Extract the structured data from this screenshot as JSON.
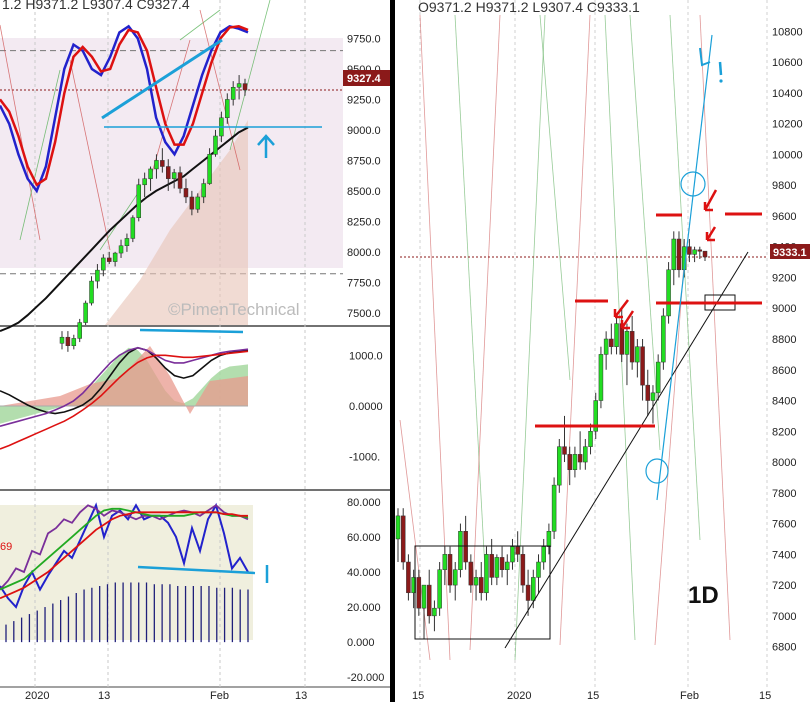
{
  "colors": {
    "bull": "#22dd22",
    "bear": "#8b1a1a",
    "blue": "#2222cc",
    "red": "#dd1111",
    "cyan": "#1ba0d8",
    "black": "#111111",
    "divider": "#000000",
    "price_tag": "#8b1a1a"
  },
  "chart_data": [
    {
      "type": "line",
      "name": "left-price-panel",
      "ohlc_text": "1.2   H9371.2   L9307.4   C9327.4",
      "last_price_label": "9327.4",
      "y_ticks": [
        "9750.0",
        "9500.0",
        "9250.0",
        "9000.0",
        "8750.0",
        "8500.0",
        "8250.0",
        "8000.0",
        "7750.0",
        "7500.0"
      ],
      "y_tick_values": [
        9750,
        9500,
        9250,
        9000,
        8750,
        8500,
        8250,
        8000,
        7750,
        7500
      ],
      "ylim": [
        7400,
        10000
      ],
      "watermark": "©PimenTechnical",
      "candles": [
        [
          7250,
          7350,
          7200,
          7300
        ],
        [
          7300,
          7350,
          7180,
          7230
        ],
        [
          7230,
          7320,
          7200,
          7290
        ],
        [
          7290,
          7450,
          7260,
          7420
        ],
        [
          7420,
          7600,
          7400,
          7580
        ],
        [
          7580,
          7800,
          7560,
          7760
        ],
        [
          7760,
          7900,
          7700,
          7850
        ],
        [
          7850,
          7980,
          7800,
          7950
        ],
        [
          7950,
          8000,
          7900,
          7920
        ],
        [
          7920,
          8000,
          7880,
          7990
        ],
        [
          7990,
          8100,
          7950,
          8050
        ],
        [
          8050,
          8150,
          8000,
          8110
        ],
        [
          8110,
          8300,
          8080,
          8280
        ],
        [
          8280,
          8600,
          8250,
          8550
        ],
        [
          8550,
          8650,
          8450,
          8600
        ],
        [
          8600,
          8700,
          8500,
          8680
        ],
        [
          8680,
          8800,
          8600,
          8750
        ],
        [
          8750,
          8850,
          8650,
          8700
        ],
        [
          8700,
          8760,
          8500,
          8600
        ],
        [
          8600,
          8680,
          8520,
          8650
        ],
        [
          8650,
          8700,
          8480,
          8520
        ],
        [
          8520,
          8600,
          8400,
          8450
        ],
        [
          8450,
          8500,
          8300,
          8350
        ],
        [
          8350,
          8480,
          8320,
          8450
        ],
        [
          8450,
          8600,
          8400,
          8560
        ],
        [
          8560,
          8850,
          8550,
          8800
        ],
        [
          8800,
          9000,
          8780,
          8950
        ],
        [
          8950,
          9150,
          8900,
          9100
        ],
        [
          9100,
          9300,
          9050,
          9250
        ],
        [
          9250,
          9400,
          9200,
          9350
        ],
        [
          9350,
          9450,
          9250,
          9380
        ],
        [
          9380,
          9420,
          9280,
          9327.4
        ]
      ],
      "series": [
        {
          "name": "blue-fast",
          "color": "#2222cc",
          "values": [
            9200,
            9050,
            8800,
            8600,
            8500,
            8700,
            9100,
            9500,
            9700,
            9650,
            9500,
            9450,
            9600,
            9800,
            9850,
            9750,
            9500,
            9100,
            8900,
            8800,
            8950,
            9200,
            9450,
            9650,
            9800,
            9850,
            9830,
            9800
          ]
        },
        {
          "name": "red-fast",
          "color": "#dd1111",
          "values": [
            9250,
            9150,
            8950,
            8700,
            8550,
            8600,
            8900,
            9300,
            9600,
            9680,
            9600,
            9480,
            9500,
            9700,
            9820,
            9800,
            9650,
            9350,
            9050,
            8880,
            8880,
            9050,
            9300,
            9550,
            9750,
            9840,
            9850,
            9820
          ]
        },
        {
          "name": "black-ma",
          "color": "#111111",
          "values": [
            7350,
            7380,
            7420,
            7480,
            7550,
            7620,
            7700,
            7780,
            7860,
            7940,
            8020,
            8100,
            8180,
            8250,
            8320,
            8390,
            8450,
            8500,
            8540,
            8580,
            8620,
            8680,
            8740,
            8800,
            8860,
            8920,
            8980,
            9020
          ]
        }
      ],
      "annotations": [
        "cyan-trendline",
        "cyan-horizontal-support",
        "cyan-up-arrow"
      ]
    },
    {
      "type": "area",
      "name": "left-momentum-panel",
      "y_ticks": [
        "1000.0",
        "0.0000",
        "-1000."
      ],
      "y_tick_values": [
        1000,
        0,
        -1000
      ],
      "ylim": [
        -1600,
        1500
      ],
      "histogram": [
        -350,
        -300,
        -250,
        -200,
        -150,
        -100,
        -50,
        0,
        100,
        250,
        400,
        600,
        800,
        1000,
        1150,
        1100,
        900,
        600,
        300,
        100,
        50,
        150,
        350,
        550,
        700,
        780,
        800,
        820
      ],
      "series": [
        {
          "name": "black-1",
          "color": "#111111",
          "values": [
            300,
            220,
            120,
            20,
            -60,
            -120,
            -150,
            -120,
            -60,
            20,
            150,
            350,
            600,
            850,
            1050,
            1150,
            1100,
            950,
            750,
            600,
            550,
            600,
            750,
            900,
            1000,
            1050,
            1080,
            1100
          ]
        },
        {
          "name": "purple-1",
          "color": "#7a2f9a",
          "values": [
            -400,
            -350,
            -300,
            -250,
            -200,
            -150,
            -80,
            0,
            100,
            250,
            450,
            650,
            850,
            1000,
            1100,
            1150,
            1100,
            1000,
            900,
            850,
            850,
            900,
            950,
            1000,
            1050,
            1080,
            1100,
            1120
          ]
        },
        {
          "name": "red-1",
          "color": "#dd1111",
          "values": [
            -850,
            -780,
            -700,
            -620,
            -540,
            -460,
            -380,
            -300,
            -200,
            -80,
            50,
            200,
            380,
            560,
            720,
            860,
            950,
            1000,
            1000,
            980,
            960,
            960,
            980,
            1000,
            1020,
            1040,
            1060,
            1080
          ]
        }
      ],
      "annotations": [
        "cyan-horizontal-line"
      ]
    },
    {
      "type": "line",
      "name": "left-oscillator-panel",
      "y_ticks": [
        "80.000",
        "60.000",
        "40.000",
        "20.000",
        "0.000",
        "-20.000"
      ],
      "y_tick_values": [
        80,
        60,
        40,
        20,
        0,
        -20
      ],
      "ylim": [
        -25,
        85
      ],
      "left_label": "69",
      "series": [
        {
          "name": "blue-osc",
          "color": "#2222cc",
          "values": [
            32,
            25,
            20,
            32,
            40,
            30,
            38,
            45,
            52,
            48,
            58,
            68,
            78,
            60,
            72,
            75,
            70,
            78,
            70,
            72,
            72,
            68,
            60,
            45,
            65,
            52,
            70,
            78,
            62,
            42,
            48,
            40
          ]
        },
        {
          "name": "purple-osc",
          "color": "#7a2f9a",
          "values": [
            30,
            35,
            42,
            40,
            52,
            50,
            62,
            65,
            70,
            68,
            74,
            78,
            76,
            72,
            75,
            74,
            72,
            70,
            72,
            72,
            70,
            72,
            74,
            75,
            74,
            72,
            75,
            78,
            74,
            72,
            72,
            70
          ]
        },
        {
          "name": "green-osc",
          "color": "#22aa22",
          "values": [
            30,
            32,
            34,
            36,
            40,
            44,
            48,
            52,
            56,
            60,
            64,
            68,
            72,
            75,
            76,
            76,
            75,
            74,
            73,
            72,
            72,
            72,
            72,
            72,
            73,
            74,
            74,
            74,
            73,
            72,
            72,
            71
          ]
        },
        {
          "name": "red-osc",
          "color": "#dd1111",
          "values": [
            25,
            27,
            29,
            31,
            34,
            37,
            40,
            44,
            48,
            52,
            56,
            60,
            64,
            67,
            70,
            72,
            73,
            74,
            74,
            74,
            74,
            74,
            74,
            74,
            74,
            74,
            74,
            74,
            73,
            73,
            72,
            72
          ]
        }
      ],
      "histogram": [
        10,
        12,
        14,
        16,
        18,
        20,
        22,
        24,
        26,
        28,
        30,
        31,
        32,
        33,
        34,
        34,
        34,
        34,
        34,
        33,
        33,
        33,
        32,
        32,
        32,
        32,
        32,
        31,
        31,
        31,
        30,
        30
      ],
      "annotations": [
        "cyan-horizontal-line",
        "cyan-mark"
      ]
    },
    {
      "type": "line",
      "name": "right-price-panel-1D",
      "ohlc_text": "O9371.2   H9371.2   L9307.4   C9333.1",
      "last_price_label": "9333.1",
      "timeframe_label": "1D",
      "y_ticks": [
        "10800",
        "10600",
        "10400",
        "10200",
        "10000",
        "9800",
        "9600",
        "9400",
        "9200",
        "9000",
        "8800",
        "8600",
        "8400",
        "8200",
        "8000",
        "7800",
        "7600",
        "7400",
        "7200",
        "7000",
        "6800"
      ],
      "y_tick_values": [
        10800,
        10600,
        10400,
        10200,
        10000,
        9800,
        9600,
        9400,
        9200,
        9000,
        8800,
        8600,
        8400,
        8200,
        8000,
        7800,
        7600,
        7400,
        7200,
        7000,
        6800
      ],
      "ylim": [
        6700,
        10900
      ],
      "x_ticks": [
        "15",
        "2020",
        "15",
        "Feb",
        "15"
      ],
      "candles": [
        [
          7500,
          7700,
          7350,
          7650
        ],
        [
          7650,
          7700,
          7300,
          7350
        ],
        [
          7350,
          7400,
          7100,
          7150
        ],
        [
          7150,
          7300,
          7050,
          7250
        ],
        [
          7250,
          7300,
          7000,
          7050
        ],
        [
          7050,
          7200,
          6850,
          7200
        ],
        [
          7200,
          7300,
          6950,
          7000
        ],
        [
          7000,
          7100,
          6900,
          7050
        ],
        [
          7050,
          7350,
          7000,
          7300
        ],
        [
          7300,
          7450,
          7200,
          7400
        ],
        [
          7400,
          7450,
          7150,
          7200
        ],
        [
          7200,
          7350,
          7100,
          7300
        ],
        [
          7300,
          7600,
          7250,
          7550
        ],
        [
          7550,
          7650,
          7300,
          7350
        ],
        [
          7350,
          7400,
          7150,
          7200
        ],
        [
          7200,
          7300,
          7100,
          7250
        ],
        [
          7250,
          7350,
          7100,
          7150
        ],
        [
          7150,
          7450,
          7100,
          7400
        ],
        [
          7400,
          7500,
          7200,
          7250
        ],
        [
          7250,
          7400,
          7200,
          7380
        ],
        [
          7380,
          7450,
          7250,
          7300
        ],
        [
          7300,
          7400,
          7200,
          7350
        ],
        [
          7350,
          7500,
          7300,
          7450
        ],
        [
          7450,
          7550,
          7350,
          7400
        ],
        [
          7400,
          7450,
          7150,
          7200
        ],
        [
          7200,
          7300,
          7000,
          7100
        ],
        [
          7100,
          7300,
          7050,
          7250
        ],
        [
          7250,
          7400,
          7150,
          7350
        ],
        [
          7350,
          7500,
          7300,
          7450
        ],
        [
          7450,
          7600,
          7400,
          7550
        ],
        [
          7550,
          7900,
          7500,
          7850
        ],
        [
          7850,
          8150,
          7800,
          8100
        ],
        [
          8100,
          8300,
          8000,
          8050
        ],
        [
          8050,
          8100,
          7850,
          7950
        ],
        [
          7950,
          8100,
          7900,
          8050
        ],
        [
          8050,
          8200,
          7950,
          8000
        ],
        [
          8000,
          8150,
          7950,
          8100
        ],
        [
          8100,
          8250,
          8050,
          8200
        ],
        [
          8200,
          8450,
          8150,
          8400
        ],
        [
          8400,
          8750,
          8350,
          8700
        ],
        [
          8700,
          8850,
          8600,
          8800
        ],
        [
          8800,
          8900,
          8700,
          8750
        ],
        [
          8750,
          8950,
          8700,
          8900
        ],
        [
          8900,
          9000,
          8650,
          8700
        ],
        [
          8700,
          8900,
          8500,
          8850
        ],
        [
          8850,
          8950,
          8600,
          8650
        ],
        [
          8650,
          8800,
          8550,
          8750
        ],
        [
          8750,
          8800,
          8400,
          8500
        ],
        [
          8500,
          8600,
          8300,
          8400
        ],
        [
          8400,
          8500,
          8250,
          8450
        ],
        [
          8450,
          8700,
          8400,
          8650
        ],
        [
          8650,
          9000,
          8600,
          8950
        ],
        [
          8950,
          9300,
          8900,
          9250
        ],
        [
          9250,
          9500,
          9150,
          9450
        ],
        [
          9450,
          9500,
          9200,
          9250
        ],
        [
          9250,
          9450,
          9200,
          9400
        ],
        [
          9400,
          9450,
          9300,
          9350
        ],
        [
          9350,
          9400,
          9300,
          9380
        ],
        [
          9380,
          9400,
          9320,
          9371.2
        ],
        [
          9371.2,
          9371.2,
          9307.4,
          9333.1
        ]
      ],
      "annotations": [
        "black-support-trendline",
        "black-consolidation-box",
        "red-resistance-levels",
        "red-arrows",
        "cyan-projection",
        "cyan-circles",
        "cyan-exclamation"
      ]
    }
  ],
  "left_x_ticks": [
    "2020",
    "13",
    "Feb",
    "13"
  ]
}
